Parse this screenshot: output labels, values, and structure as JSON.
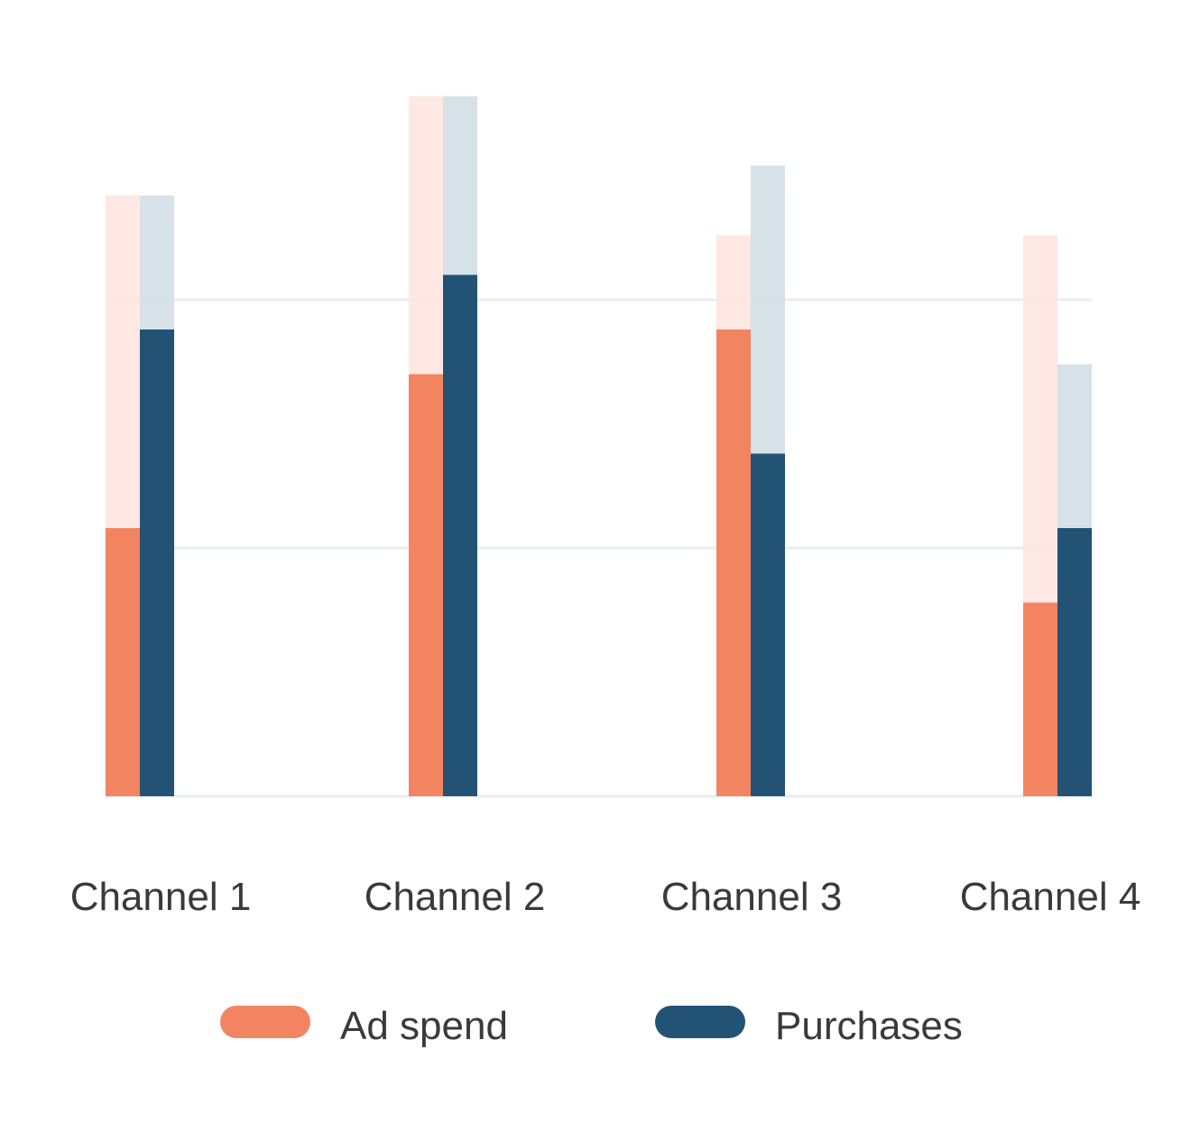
{
  "chart_data": {
    "type": "bar",
    "categories": [
      "Channel 1",
      "Channel 2",
      "Channel 3",
      "Channel 4"
    ],
    "ylim": [
      0,
      100
    ],
    "grid": true,
    "gridlines": [
      50,
      100
    ],
    "legend_position": "bottom",
    "series": [
      {
        "name": "Ad spend",
        "color": "#F38462",
        "ghost_color": "#FDE6E0",
        "values": [
          54,
          85,
          94,
          39
        ],
        "ghost_values": [
          121,
          141,
          113,
          113
        ]
      },
      {
        "name": "Purchases",
        "color": "#225274",
        "ghost_color": "#D3DEE5",
        "values": [
          94,
          105,
          69,
          54
        ],
        "ghost_values": [
          121,
          141,
          127,
          87
        ]
      }
    ]
  }
}
